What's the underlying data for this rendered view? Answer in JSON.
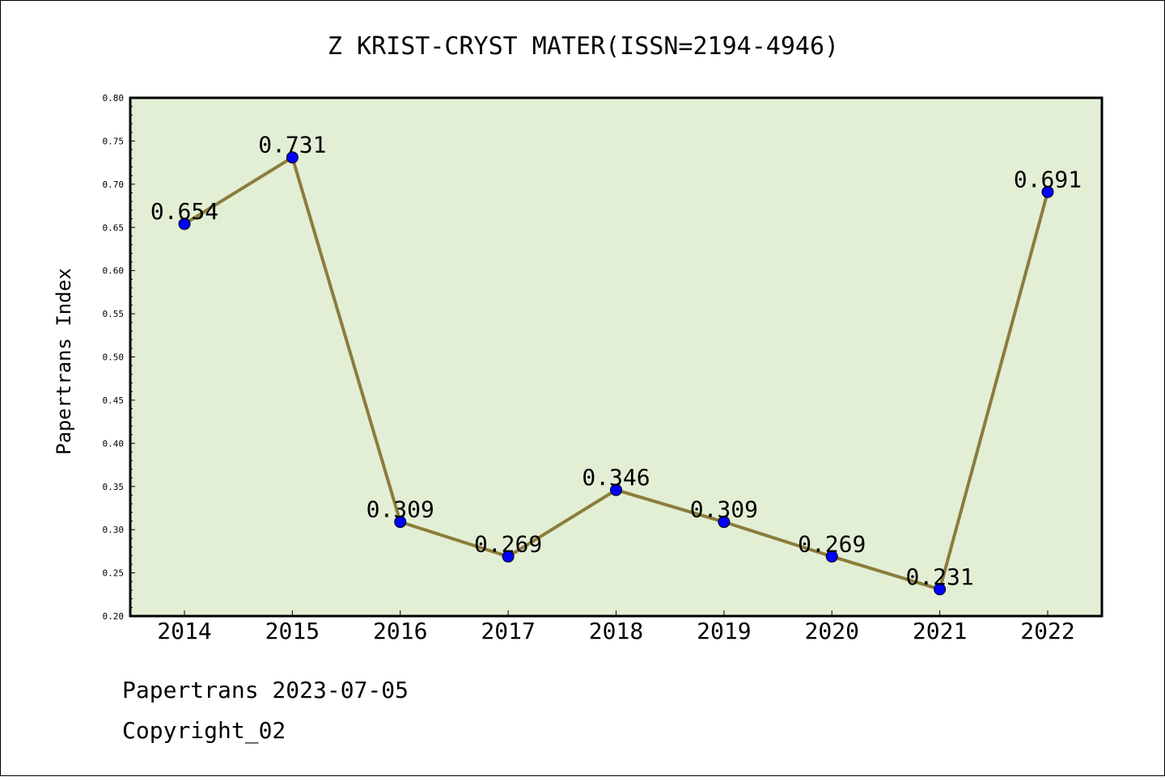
{
  "chart_data": {
    "type": "line",
    "title": "Z KRIST-CRYST MATER(ISSN=2194-4946)",
    "xlabel": "",
    "ylabel": "Papertrans Index",
    "categories": [
      "2014",
      "2015",
      "2016",
      "2017",
      "2018",
      "2019",
      "2020",
      "2021",
      "2022"
    ],
    "series": [
      {
        "values": [
          0.654,
          0.731,
          0.309,
          0.269,
          0.346,
          0.309,
          0.269,
          0.231,
          0.691
        ]
      }
    ],
    "data_labels": [
      "0.654",
      "0.731",
      "0.309",
      "0.269",
      "0.346",
      "0.309",
      "0.269",
      "0.231",
      "0.691"
    ],
    "ylim": [
      0.2,
      0.8
    ],
    "yticks": [
      "0.20",
      "0.25",
      "0.30",
      "0.35",
      "0.40",
      "0.45",
      "0.50",
      "0.55",
      "0.60",
      "0.65",
      "0.70",
      "0.75",
      "0.80"
    ],
    "grid": false,
    "colors": {
      "plot_background": "#e2efd5",
      "line": "#8b7d3a",
      "marker": "#0000ff"
    }
  },
  "footer": {
    "line1": "Papertrans 2023-07-05",
    "line2": "Copyright_02"
  }
}
